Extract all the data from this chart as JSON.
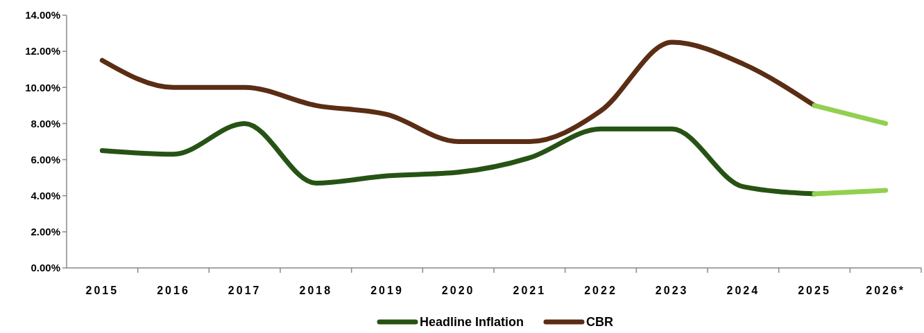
{
  "chart_data": {
    "type": "line",
    "categories": [
      "2015",
      "2016",
      "2017",
      "2018",
      "2019",
      "2020",
      "2021",
      "2022",
      "2023",
      "2024",
      "2025",
      "2026*"
    ],
    "series": [
      {
        "name": "Headline Inflation",
        "color": "#265314",
        "values": [
          6.5,
          6.3,
          8.0,
          4.7,
          5.1,
          5.3,
          6.1,
          7.7,
          7.7,
          4.5,
          4.1,
          null
        ]
      },
      {
        "name": "CBR",
        "color": "#5a2d14",
        "values": [
          11.5,
          10.0,
          10.0,
          9.0,
          8.5,
          7.0,
          7.0,
          8.7,
          12.5,
          11.3,
          9.0,
          null
        ]
      },
      {
        "color": "#92d050",
        "values": [
          null,
          null,
          null,
          null,
          null,
          null,
          null,
          null,
          null,
          null,
          4.1,
          4.3
        ]
      },
      {
        "color": "#92d050",
        "values": [
          null,
          null,
          null,
          null,
          null,
          null,
          null,
          null,
          null,
          null,
          9.0,
          8.0
        ]
      }
    ],
    "ylim": [
      0,
      14
    ],
    "yticks": [
      {
        "value": 0,
        "label": "0.00%"
      },
      {
        "value": 2,
        "label": "2.00%"
      },
      {
        "value": 4,
        "label": "4.00%"
      },
      {
        "value": 6,
        "label": "6.00%"
      },
      {
        "value": 8,
        "label": "8.00%"
      },
      {
        "value": 10,
        "label": "10.00%"
      },
      {
        "value": 12,
        "label": "12.00%"
      },
      {
        "value": 14,
        "label": "14.00%"
      }
    ],
    "grid": false,
    "legend": "bottom",
    "marker": "none",
    "line_style": "solid"
  }
}
